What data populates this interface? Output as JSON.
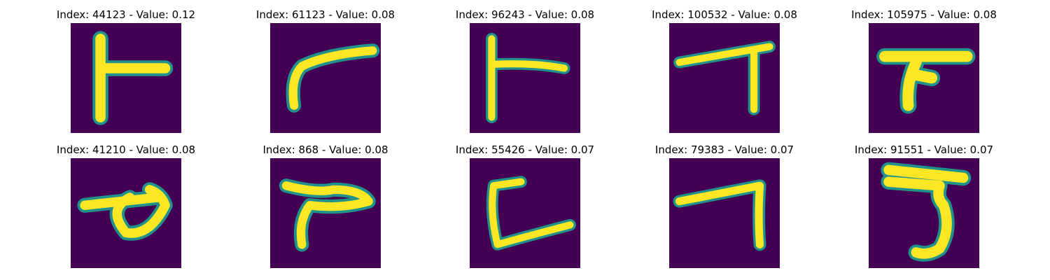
{
  "colors": {
    "background": "#440154",
    "stroke": "#fde725",
    "edge": "#21918c",
    "edge2": "#5ec962"
  },
  "panels": [
    {
      "index": "44123",
      "value": "0.12",
      "title": "Index: 44123 - Value: 0.12",
      "glyph": "glyph-t-shape"
    },
    {
      "index": "61123",
      "value": "0.08",
      "title": "Index: 61123 - Value: 0.08",
      "glyph": "glyph-curved-hook"
    },
    {
      "index": "96243",
      "value": "0.08",
      "title": "Index: 96243 - Value: 0.08",
      "glyph": "glyph-t-shape-thin"
    },
    {
      "index": "100532",
      "value": "0.08",
      "title": "Index: 100532 - Value: 0.08",
      "glyph": "glyph-seven"
    },
    {
      "index": "105975",
      "value": "0.08",
      "title": "Index: 105975 - Value: 0.08",
      "glyph": "glyph-bar-hook"
    },
    {
      "index": "41210",
      "value": "0.08",
      "title": "Index: 41210 - Value: 0.08",
      "glyph": "glyph-loop"
    },
    {
      "index": "868",
      "value": "0.08",
      "title": "Index: 868 - Value: 0.08",
      "glyph": "glyph-curved-hook"
    },
    {
      "index": "55426",
      "value": "0.07",
      "title": "Index: 55426 - Value: 0.07",
      "glyph": "glyph-l-shape"
    },
    {
      "index": "79383",
      "value": "0.07",
      "title": "Index: 79383 - Value: 0.07",
      "glyph": "glyph-seven"
    },
    {
      "index": "91551",
      "value": "0.07",
      "title": "Index: 91551 - Value: 0.07",
      "glyph": "glyph-five-hook"
    }
  ]
}
